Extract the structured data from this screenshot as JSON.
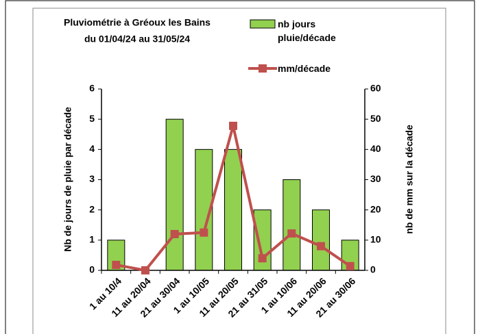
{
  "chart_data": {
    "type": "bar_line",
    "title": [
      "Pluviométrie à Gréoux les Bains",
      "du 01/04/24 au 31/05/24"
    ],
    "ylabel": "Nb de jours de pluie par décade",
    "y2label": "nb de mm sur la décade",
    "categories": [
      "1 au 10/4",
      "11 au 20/04",
      "21 au 30/04",
      "1 au 10/05",
      "11 au 20/05",
      "21 au 31/05",
      "1 au 10/06",
      "11 au 20/06",
      "21 au 30/06"
    ],
    "series": [
      {
        "name": "nb jours pluie/décade",
        "color": "#92d050",
        "values": [
          1,
          0,
          5,
          4,
          4,
          2,
          3,
          2,
          1
        ]
      },
      {
        "name": "mm/décade",
        "color": "#c0504d",
        "axis": "y2",
        "values": [
          1.8,
          0,
          12,
          12.5,
          47.8,
          4,
          12.2,
          8,
          1.4
        ]
      }
    ],
    "ylim": [
      0,
      6
    ],
    "yticks": [
      0,
      1,
      2,
      3,
      4,
      5,
      6
    ],
    "y2lim": [
      0,
      60
    ],
    "y2ticks": [
      0,
      10,
      20,
      30,
      40,
      50,
      60
    ]
  }
}
